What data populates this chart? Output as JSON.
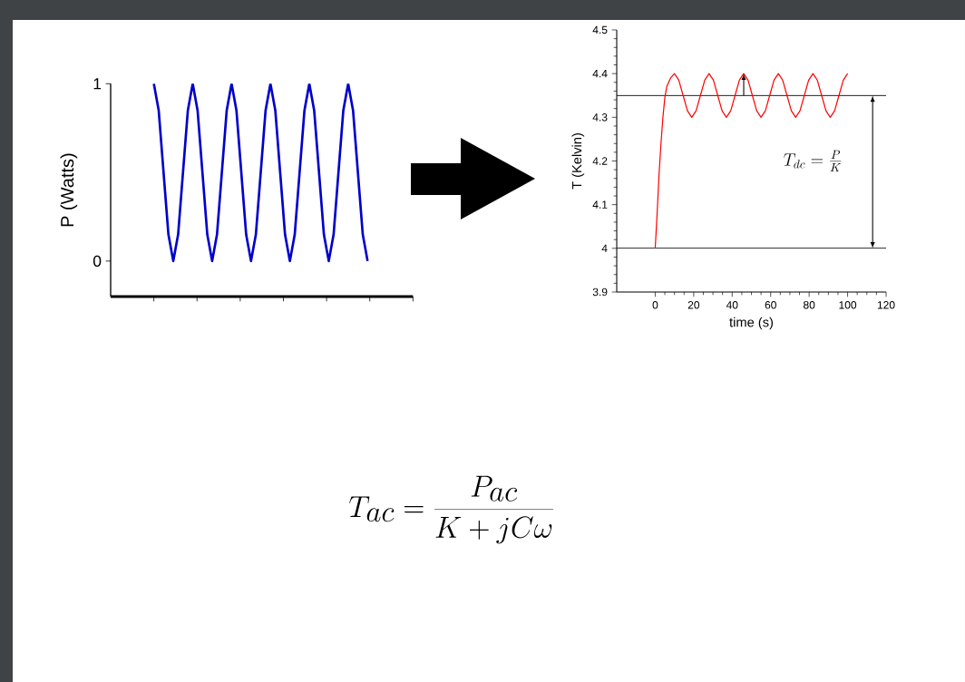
{
  "chart_data": [
    {
      "type": "line",
      "ylabel": "P (Watts)",
      "color": "#0000cc",
      "marker": "none",
      "line_style": "solid",
      "categories": [
        null,
        null,
        null,
        null,
        null,
        null,
        null,
        null,
        null,
        null,
        null,
        null,
        null,
        null,
        null,
        null,
        null,
        null,
        null,
        null,
        null,
        null,
        null,
        null,
        null,
        null,
        null,
        null,
        null,
        null,
        null,
        null,
        null,
        null,
        null,
        null,
        null,
        null,
        null,
        null,
        null,
        null,
        null,
        null,
        null
      ],
      "values": [
        1,
        0.85,
        0.5,
        0.15,
        0,
        0.15,
        0.5,
        0.85,
        1,
        0.85,
        0.5,
        0.15,
        0,
        0.15,
        0.5,
        0.85,
        1,
        0.85,
        0.5,
        0.15,
        0,
        0.15,
        0.5,
        0.85,
        1,
        0.85,
        0.5,
        0.15,
        0,
        0.15,
        0.5,
        0.85,
        1,
        0.85,
        0.5,
        0.15,
        0,
        0.15,
        0.5,
        0.85,
        1,
        0.85,
        0.5,
        0.15,
        0
      ],
      "ylim": [
        -0.2,
        1
      ],
      "yticks": [
        0,
        1
      ]
    },
    {
      "type": "line",
      "xlabel": "time (s)",
      "ylabel": "T (Kelvin)",
      "color": "#ff0000",
      "marker": "none",
      "line_style": "solid",
      "x": [
        0,
        1,
        2,
        3,
        4,
        5,
        6,
        8,
        10,
        12.25,
        14.5,
        16.75,
        19,
        21.25,
        23.5,
        25.75,
        28,
        30.25,
        32.5,
        34.75,
        37,
        39.25,
        41.5,
        43.75,
        46,
        48.25,
        50.5,
        52.75,
        55,
        57.25,
        59.5,
        61.75,
        64,
        66.25,
        68.5,
        70.75,
        73,
        75.25,
        77.5,
        79.75,
        82,
        84.25,
        86.5,
        88.75,
        91,
        93.25,
        95.5,
        97.75,
        100
      ],
      "values": [
        4.0,
        4.08,
        4.17,
        4.24,
        4.3,
        4.345,
        4.37,
        4.39,
        4.4,
        4.385,
        4.35,
        4.315,
        4.3,
        4.315,
        4.35,
        4.385,
        4.4,
        4.385,
        4.35,
        4.315,
        4.3,
        4.315,
        4.35,
        4.385,
        4.4,
        4.385,
        4.35,
        4.315,
        4.3,
        4.315,
        4.35,
        4.385,
        4.4,
        4.385,
        4.35,
        4.315,
        4.3,
        4.315,
        4.35,
        4.385,
        4.4,
        4.385,
        4.35,
        4.315,
        4.3,
        4.315,
        4.35,
        4.385,
        4.4
      ],
      "xlim": [
        -20,
        120
      ],
      "xticks": [
        0,
        20,
        40,
        60,
        80,
        100,
        120
      ],
      "ylim": [
        3.9,
        4.5
      ],
      "yticks": [
        3.9,
        4,
        4.1,
        4.2,
        4.3,
        4.4,
        4.5
      ],
      "ref_lines": [
        {
          "axis": "y",
          "value": 4.35,
          "color": "#000000"
        },
        {
          "axis": "y",
          "value": 4.0,
          "color": "#000000"
        }
      ],
      "annotations": [
        "T_{dc} = \\frac{P}{K}"
      ]
    },
    {
      "type": "other",
      "annotations": [
        "T_{ac} = \\frac{P_{ac}}{K + jC\\omega}"
      ]
    }
  ]
}
